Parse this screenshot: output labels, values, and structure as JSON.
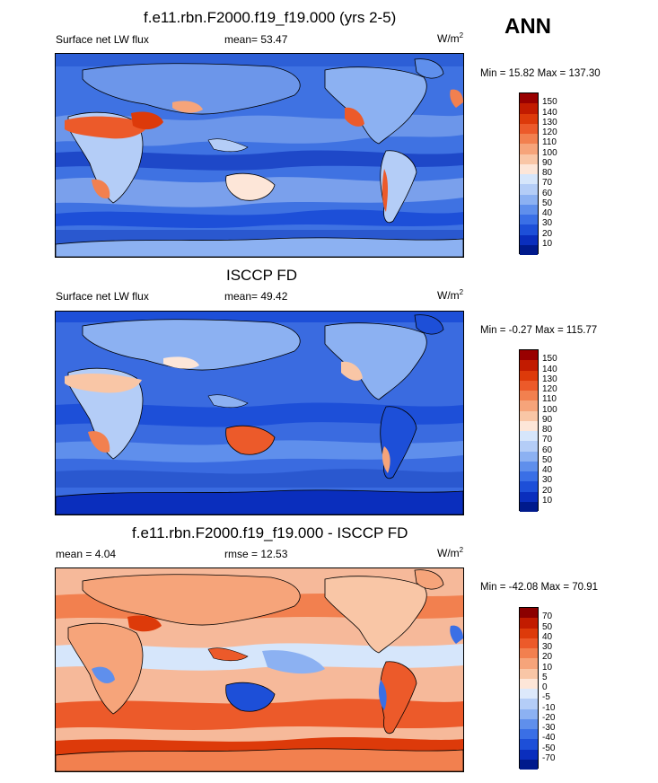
{
  "season": "ANN",
  "panels": [
    {
      "title": "f.e11.rbn.F2000.f19_f19.000 (yrs 2-5)",
      "left_label": "Surface net LW flux",
      "mid_label": "mean=  53.47",
      "units": "W/m",
      "units_sup": "2",
      "minmax": "Min =  15.82 Max = 137.30",
      "colorbar_labels": [
        "150",
        "140",
        "130",
        "120",
        "110",
        "100",
        "90",
        "80",
        "70",
        "60",
        "50",
        "40",
        "30",
        "20",
        "10"
      ],
      "colorbar_colors": [
        "#990000",
        "#c21b00",
        "#dd3a0a",
        "#ec5a2a",
        "#f2804f",
        "#f6a47a",
        "#f9c6a6",
        "#fde6d8",
        "#d6e6fb",
        "#b4cdf7",
        "#8cb1f2",
        "#5f8fec",
        "#3a6fe6",
        "#1d4fd8",
        "#0a2ebd",
        "#001a8c"
      ],
      "ocean_color": "#3f72e2"
    },
    {
      "title": "ISCCP FD",
      "left_label": "Surface net LW flux",
      "mid_label": "mean=  49.42",
      "units": "W/m",
      "units_sup": "2",
      "minmax": "Min =  -0.27 Max = 115.77",
      "colorbar_labels": [
        "150",
        "140",
        "130",
        "120",
        "110",
        "100",
        "90",
        "80",
        "70",
        "60",
        "50",
        "40",
        "30",
        "20",
        "10"
      ],
      "colorbar_colors": [
        "#990000",
        "#c21b00",
        "#dd3a0a",
        "#ec5a2a",
        "#f2804f",
        "#f6a47a",
        "#f9c6a6",
        "#fde6d8",
        "#d6e6fb",
        "#b4cdf7",
        "#8cb1f2",
        "#5f8fec",
        "#3a6fe6",
        "#1d4fd8",
        "#0a2ebd",
        "#001a8c"
      ],
      "ocean_color": "#3a6be0"
    },
    {
      "title": "f.e11.rbn.F2000.f19_f19.000 - ISCCP FD",
      "left_label": "mean =   4.04",
      "mid_label": "rmse =  12.53",
      "units": "W/m",
      "units_sup": "2",
      "minmax": "Min = -42.08 Max =  70.91",
      "colorbar_labels": [
        "70",
        "50",
        "40",
        "30",
        "20",
        "10",
        "5",
        "0",
        "-5",
        "-10",
        "-20",
        "-30",
        "-40",
        "-50",
        "-70"
      ],
      "colorbar_colors": [
        "#8c0000",
        "#c21b00",
        "#dd3a0a",
        "#ec5a2a",
        "#f2804f",
        "#f6a47a",
        "#f9c6a6",
        "#fde6d8",
        "#dde9fb",
        "#b4cdf7",
        "#8cb1f2",
        "#5f8fec",
        "#3a6fe6",
        "#1d4fd8",
        "#0a2ebd",
        "#001a8c"
      ],
      "ocean_color": "#f6b99a"
    }
  ]
}
